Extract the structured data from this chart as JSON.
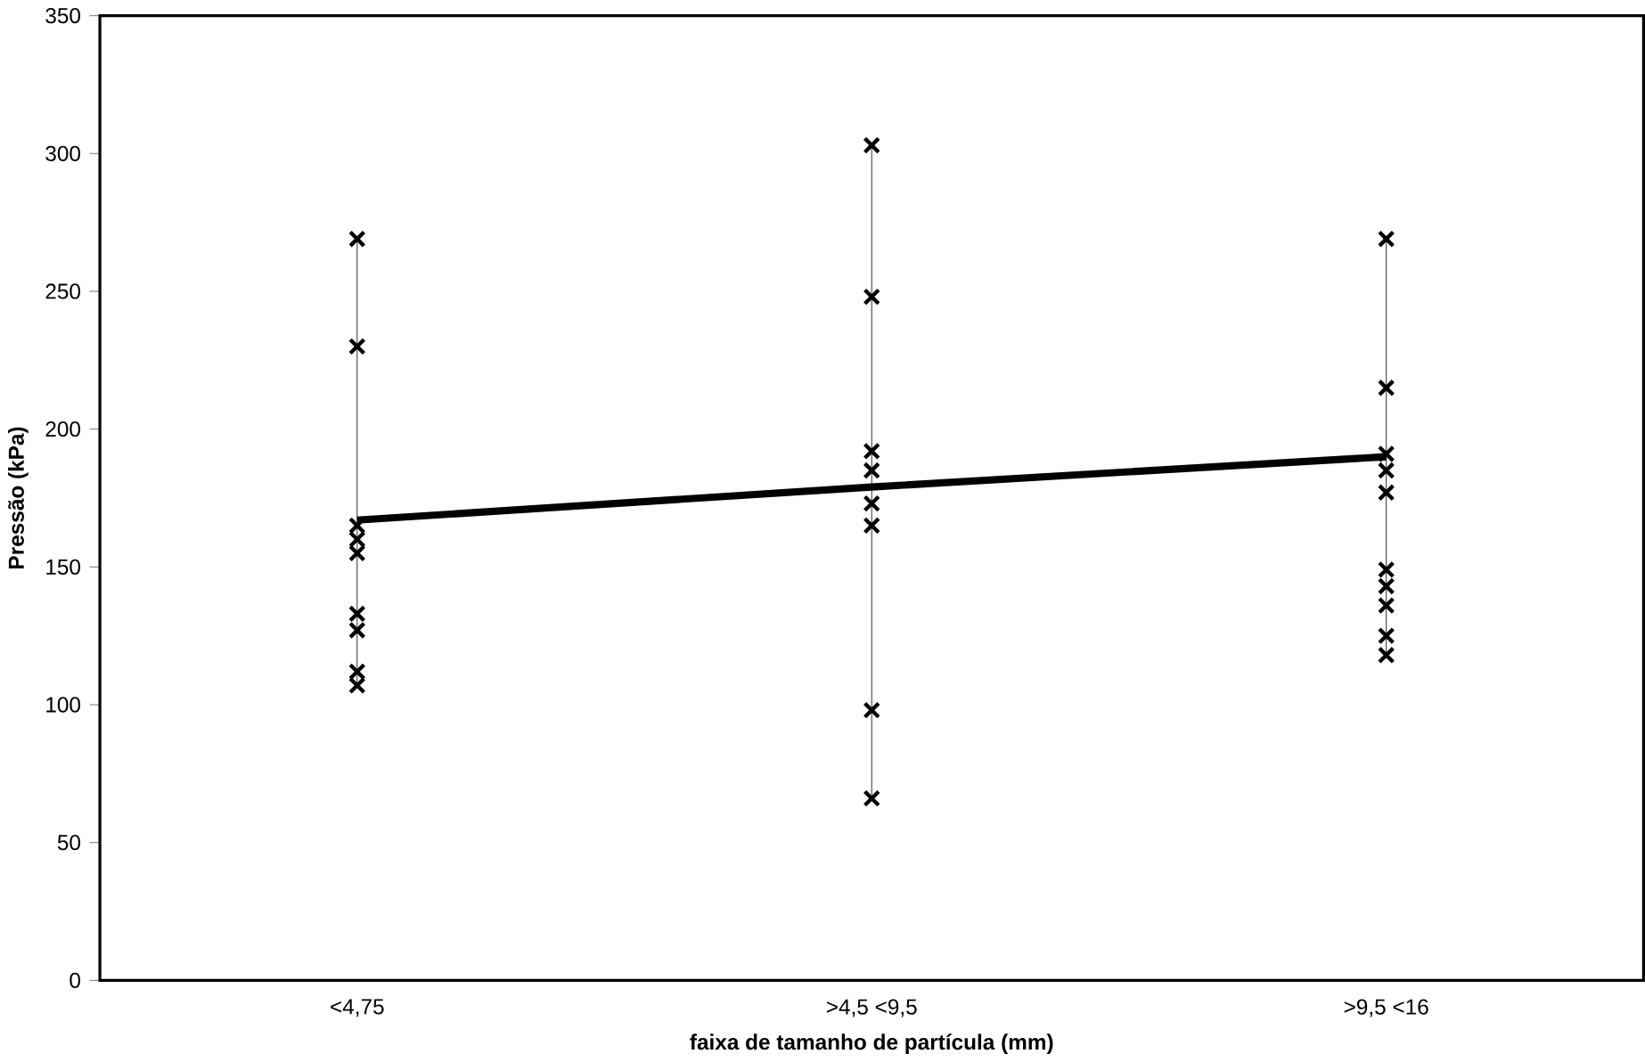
{
  "chart_data": {
    "type": "line",
    "xlabel": "faixa de tamanho de partícula (mm)",
    "ylabel": "Pressão (kPa)",
    "categories": [
      "<4,75",
      ">4,5 <9,5",
      ">9,5 <16"
    ],
    "ylim": [
      0,
      350
    ],
    "yticks": [
      0,
      50,
      100,
      150,
      200,
      250,
      300,
      350
    ],
    "grid": false,
    "series": [
      {
        "type": "scatter",
        "color": "#000000",
        "marker": "cross",
        "x": [
          "<4,75",
          "<4,75",
          "<4,75",
          "<4,75",
          "<4,75",
          "<4,75",
          "<4,75",
          "<4,75",
          "<4,75",
          ">4,5 <9,5",
          ">4,5 <9,5",
          ">4,5 <9,5",
          ">4,5 <9,5",
          ">4,5 <9,5",
          ">4,5 <9,5",
          ">4,5 <9,5",
          ">4,5 <9,5",
          ">9,5 <16",
          ">9,5 <16",
          ">9,5 <16",
          ">9,5 <16",
          ">9,5 <16",
          ">9,5 <16",
          ">9,5 <16",
          ">9,5 <16",
          ">9,5 <16",
          ">9,5 <16"
        ],
        "values": [
          269,
          230,
          165,
          160,
          155,
          133,
          127,
          112,
          107,
          303,
          248,
          192,
          185,
          173,
          165,
          98,
          66,
          269,
          215,
          191,
          185,
          177,
          149,
          143,
          136,
          125,
          118
        ]
      },
      {
        "color": "#000000",
        "marker": "none",
        "values": [
          167,
          179,
          190
        ],
        "errors": [
          [
            107,
            269
          ],
          [
            66,
            303
          ],
          [
            118,
            269
          ]
        ]
      }
    ]
  }
}
